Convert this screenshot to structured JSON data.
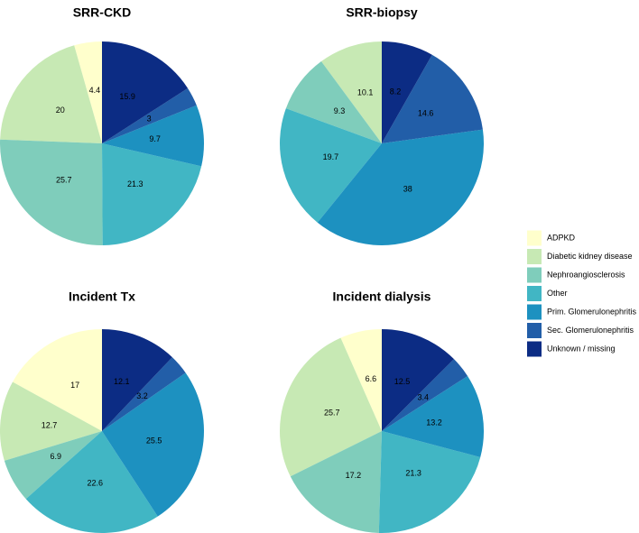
{
  "chart_data": {
    "type": "pie",
    "categories": [
      "ADPKD",
      "Diabetic kidney disease",
      "Nephroangiosclerosis",
      "Other",
      "Prim. Glomerulonephritis",
      "Sec. Glomerulonephritis",
      "Unknown / missing"
    ],
    "colors": [
      "#ffffcc",
      "#c7e9b4",
      "#7fcdbb",
      "#41b6c4",
      "#1d91c0",
      "#225ea8",
      "#0c2c84"
    ],
    "legend": {
      "placement": "right",
      "entries": [
        "ADPKD",
        "Diabetic kidney disease",
        "Nephroangiosclerosis",
        "Other",
        "Prim. Glomerulonephritis",
        "Sec. Glomerulonephritis",
        "Unknown / missing"
      ]
    },
    "panels": [
      {
        "title": "SRR-CKD",
        "values": [
          4.4,
          20,
          25.7,
          21.3,
          9.7,
          3,
          15.9
        ],
        "labels": [
          "4.4",
          "20",
          "25.7",
          "21.3",
          "9.7",
          "3",
          "15.9"
        ]
      },
      {
        "title": "SRR-biopsy",
        "values": [
          0,
          10.1,
          9.3,
          19.7,
          38,
          14.6,
          8.2
        ],
        "labels": [
          "",
          "10.1",
          "9.3",
          "19.7",
          "38",
          "14.6",
          "8.2"
        ]
      },
      {
        "title": "Incident Tx",
        "values": [
          17,
          12.7,
          6.9,
          22.6,
          25.5,
          3.2,
          12.1
        ],
        "labels": [
          "17",
          "12.7",
          "6.9",
          "22.6",
          "25.5",
          "3.2",
          "12.1"
        ]
      },
      {
        "title": "Incident dialysis",
        "values": [
          6.6,
          25.7,
          17.2,
          21.3,
          13.2,
          3.4,
          12.5
        ],
        "labels": [
          "6.6",
          "25.7",
          "17.2",
          "21.3",
          "13.2",
          "3.4",
          "12.5"
        ]
      }
    ]
  }
}
